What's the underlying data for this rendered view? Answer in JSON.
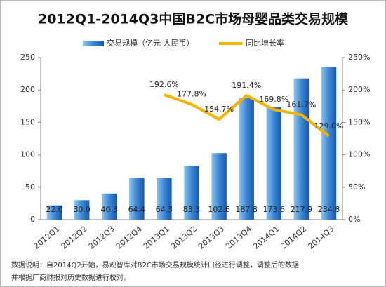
{
  "chart_data": {
    "type": "bar_line",
    "title": "2012Q1-2014Q3中国B2C市场母婴品类交易规模",
    "categories": [
      "2012Q1",
      "2012Q2",
      "2012Q3",
      "2012Q4",
      "2013Q1",
      "2013Q2",
      "2013Q3",
      "2013Q4",
      "2014Q1",
      "2014Q2",
      "2014Q3"
    ],
    "series": [
      {
        "name": "交易规模（亿元 人民币）",
        "type": "bar",
        "color": "#2a6fc4",
        "values": [
          22.0,
          30.0,
          40.3,
          64.4,
          64.3,
          83.3,
          102.6,
          187.8,
          173.6,
          217.9,
          234.8
        ],
        "value_labels": [
          "22.0",
          "30.0",
          "40.3",
          "64.4",
          "64.3",
          "83.3",
          "102.6",
          "187.8",
          "173.6",
          "217.9",
          "234.8"
        ]
      },
      {
        "name": "同比增长率",
        "type": "line",
        "axis": "y2",
        "color": "#f5b400",
        "values": [
          null,
          null,
          null,
          null,
          192.6,
          177.8,
          154.7,
          191.4,
          169.8,
          161.7,
          129.0
        ],
        "value_labels": [
          null,
          null,
          null,
          null,
          "192.6%",
          "177.8%",
          "154.7%",
          "191.4%",
          "169.8%",
          "161.7%",
          "129.0%"
        ]
      }
    ],
    "ylim": [
      0,
      250
    ],
    "yticks": [
      0,
      50,
      100,
      150,
      200,
      250
    ],
    "y2lim": [
      0,
      250
    ],
    "y2ticks": [
      {
        "value": 0,
        "label": "0%"
      },
      {
        "value": 50,
        "label": "50%"
      },
      {
        "value": 100,
        "label": "100%"
      },
      {
        "value": 150,
        "label": "150%"
      },
      {
        "value": 200,
        "label": "200%"
      },
      {
        "value": 250,
        "label": "250%"
      }
    ],
    "grid": false,
    "legend": "top",
    "footnote": [
      "数据说明：自2014Q2开始，易观智库对B2C市场交易规模统计口径进行调整，调整后的数据",
      "并根据厂商财报对历史数据进行校对。"
    ]
  }
}
